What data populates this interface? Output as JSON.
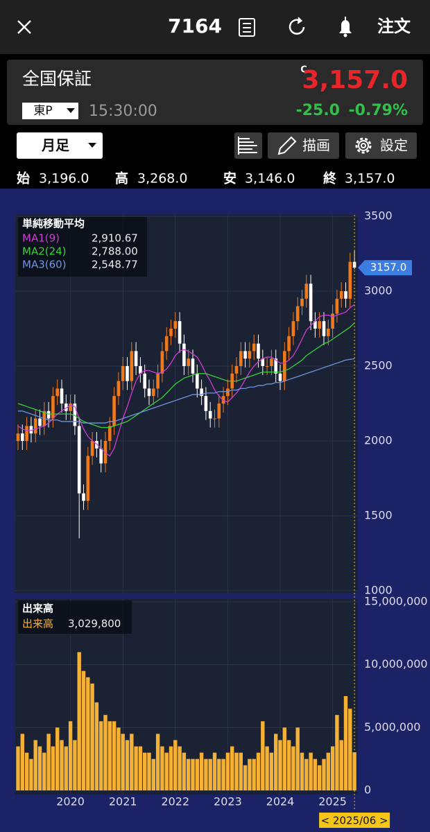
{
  "header": {
    "symbol": "7164",
    "order": "注文"
  },
  "quote": {
    "name": "全国保証",
    "flag": "C",
    "price": "3,157.0",
    "market": "東P",
    "time": "15:30:00",
    "change": "-25.0",
    "change_pct": "-0.79%"
  },
  "toolbar": {
    "period": "月足",
    "draw": "描画",
    "settings": "設定"
  },
  "ohlc": [
    {
      "label": "始",
      "value": "3,196.0"
    },
    {
      "label": "高",
      "value": "3,268.0"
    },
    {
      "label": "安",
      "value": "3,146.0"
    },
    {
      "label": "終",
      "value": "3,157.0"
    }
  ],
  "chart_data": [
    {
      "type": "candlestick",
      "legend_title": "単純移動平均",
      "open": [
        2000,
        2050,
        2000,
        2100,
        2050,
        2150,
        2100,
        2200,
        2150,
        2300,
        2350,
        2250,
        2200,
        2250,
        2100,
        1650,
        1600,
        1900,
        2000,
        1950,
        1850,
        2000,
        2100,
        2300,
        2400,
        2500,
        2400,
        2600,
        2500,
        2450,
        2350,
        2300,
        2350,
        2450,
        2600,
        2700,
        2750,
        2800,
        2650,
        2500,
        2550,
        2450,
        2350,
        2300,
        2200,
        2150,
        2150,
        2250,
        2300,
        2350,
        2450,
        2500,
        2600,
        2550,
        2600,
        2650,
        2550,
        2500,
        2500,
        2550,
        2450,
        2400,
        2600,
        2700,
        2800,
        2900,
        2950,
        3050,
        2800,
        2750,
        2800,
        2700,
        2750,
        2850,
        2950,
        3000,
        2950,
        3196
      ],
      "high": [
        2110,
        2110,
        2160,
        2160,
        2210,
        2210,
        2260,
        2260,
        2360,
        2410,
        2410,
        2310,
        2310,
        2310,
        2160,
        1710,
        1960,
        2060,
        2060,
        2010,
        2060,
        2160,
        2360,
        2460,
        2560,
        2560,
        2660,
        2660,
        2560,
        2510,
        2410,
        2410,
        2510,
        2660,
        2760,
        2810,
        2860,
        2860,
        2710,
        2610,
        2610,
        2510,
        2410,
        2360,
        2260,
        2210,
        2310,
        2360,
        2410,
        2510,
        2560,
        2660,
        2660,
        2660,
        2710,
        2710,
        2610,
        2560,
        2610,
        2610,
        2510,
        2660,
        2760,
        2860,
        2960,
        3010,
        3110,
        3110,
        2860,
        2860,
        2860,
        2810,
        2910,
        3010,
        3060,
        3060,
        3256,
        3268
      ],
      "low": [
        1940,
        1940,
        1940,
        1990,
        1990,
        2040,
        2040,
        2090,
        2090,
        2240,
        2190,
        2140,
        2140,
        2040,
        1350,
        1540,
        1540,
        1840,
        1890,
        1790,
        1790,
        1940,
        2040,
        2240,
        2340,
        2340,
        2340,
        2440,
        2390,
        2290,
        2240,
        2240,
        2290,
        2390,
        2540,
        2640,
        2690,
        2590,
        2440,
        2440,
        2390,
        2290,
        2240,
        2140,
        2090,
        2090,
        2090,
        2190,
        2240,
        2290,
        2390,
        2440,
        2490,
        2490,
        2540,
        2490,
        2440,
        2440,
        2440,
        2390,
        2340,
        2340,
        2540,
        2640,
        2740,
        2840,
        2890,
        2740,
        2690,
        2690,
        2640,
        2640,
        2690,
        2790,
        2890,
        2890,
        2890,
        3146
      ],
      "close": [
        2050,
        2000,
        2100,
        2050,
        2150,
        2100,
        2200,
        2150,
        2300,
        2350,
        2250,
        2200,
        2250,
        2100,
        1650,
        1600,
        1900,
        2000,
        1950,
        1850,
        2000,
        2100,
        2300,
        2400,
        2500,
        2400,
        2600,
        2500,
        2450,
        2350,
        2300,
        2350,
        2450,
        2600,
        2700,
        2750,
        2800,
        2650,
        2500,
        2550,
        2450,
        2350,
        2300,
        2200,
        2150,
        2150,
        2250,
        2300,
        2350,
        2450,
        2500,
        2600,
        2550,
        2600,
        2650,
        2550,
        2500,
        2500,
        2550,
        2450,
        2400,
        2600,
        2700,
        2800,
        2900,
        2950,
        3050,
        2800,
        2750,
        2800,
        2700,
        2750,
        2850,
        2950,
        3000,
        2950,
        3196,
        3157
      ],
      "up_color": "#f07a1a",
      "down_color": "#ffffff",
      "series": [
        {
          "name": "MA1(9)",
          "color": "#d23ad8",
          "values": [
            2100,
            2080,
            2070,
            2070,
            2080,
            2090,
            2100,
            2120,
            2150,
            2180,
            2200,
            2220,
            2240,
            2230,
            2150,
            2080,
            2030,
            2000,
            1980,
            1950,
            1920,
            1900,
            1950,
            2050,
            2150,
            2230,
            2320,
            2400,
            2450,
            2470,
            2470,
            2460,
            2450,
            2460,
            2480,
            2520,
            2570,
            2600,
            2610,
            2600,
            2580,
            2560,
            2510,
            2450,
            2400,
            2340,
            2300,
            2270,
            2260,
            2290,
            2320,
            2360,
            2410,
            2460,
            2500,
            2530,
            2550,
            2560,
            2560,
            2540,
            2520,
            2520,
            2540,
            2570,
            2620,
            2680,
            2740,
            2770,
            2800,
            2830,
            2840,
            2840,
            2830,
            2840,
            2850,
            2860,
            2890,
            2910.67
          ],
          "value_labels": [
            null,
            null,
            null,
            null,
            null,
            null,
            null,
            null,
            null,
            null,
            null,
            null,
            null,
            null,
            null,
            null,
            null,
            null,
            null,
            null,
            null,
            null,
            null,
            null,
            null,
            null,
            null,
            null,
            null,
            null,
            null,
            null,
            null,
            null,
            null,
            null,
            null,
            null,
            null,
            null,
            null,
            null,
            null,
            null,
            null,
            null,
            null,
            null,
            null,
            null,
            null,
            null,
            null,
            null,
            null,
            null,
            null,
            null,
            null,
            null,
            null,
            null,
            null,
            null,
            null,
            null,
            null,
            null,
            null,
            null,
            null,
            null,
            null,
            null,
            null,
            null,
            null,
            "2,910.67"
          ]
        },
        {
          "name": "MA2(24)",
          "color": "#3ccf3c",
          "values": [
            2250,
            2240,
            2230,
            2220,
            2210,
            2200,
            2190,
            2180,
            2180,
            2180,
            2180,
            2180,
            2180,
            2170,
            2150,
            2130,
            2120,
            2110,
            2100,
            2090,
            2090,
            2090,
            2100,
            2110,
            2120,
            2130,
            2150,
            2170,
            2190,
            2210,
            2230,
            2250,
            2270,
            2290,
            2320,
            2350,
            2380,
            2400,
            2420,
            2430,
            2440,
            2450,
            2450,
            2450,
            2440,
            2430,
            2420,
            2410,
            2400,
            2400,
            2400,
            2410,
            2420,
            2430,
            2440,
            2450,
            2460,
            2460,
            2460,
            2460,
            2460,
            2470,
            2480,
            2500,
            2520,
            2540,
            2570,
            2590,
            2610,
            2630,
            2650,
            2660,
            2680,
            2700,
            2720,
            2740,
            2760,
            2788
          ],
          "value_labels": [
            null,
            null,
            null,
            null,
            null,
            null,
            null,
            null,
            null,
            null,
            null,
            null,
            null,
            null,
            null,
            null,
            null,
            null,
            null,
            null,
            null,
            null,
            null,
            null,
            null,
            null,
            null,
            null,
            null,
            null,
            null,
            null,
            null,
            null,
            null,
            null,
            null,
            null,
            null,
            null,
            null,
            null,
            null,
            null,
            null,
            null,
            null,
            null,
            null,
            null,
            null,
            null,
            null,
            null,
            null,
            null,
            null,
            null,
            null,
            null,
            null,
            null,
            null,
            null,
            null,
            null,
            null,
            null,
            null,
            null,
            null,
            null,
            null,
            null,
            null,
            null,
            null,
            "2,788.00"
          ]
        },
        {
          "name": "MA3(60)",
          "color": "#6f95e0",
          "values": [
            2200,
            2200,
            2190,
            2180,
            2170,
            2160,
            2150,
            2140,
            2140,
            2140,
            2130,
            2130,
            2130,
            2130,
            2130,
            2120,
            2120,
            2120,
            2120,
            2120,
            2120,
            2130,
            2130,
            2140,
            2150,
            2160,
            2170,
            2180,
            2190,
            2200,
            2210,
            2220,
            2230,
            2240,
            2250,
            2260,
            2270,
            2280,
            2290,
            2300,
            2310,
            2310,
            2310,
            2320,
            2320,
            2320,
            2330,
            2330,
            2330,
            2340,
            2340,
            2350,
            2350,
            2360,
            2360,
            2370,
            2370,
            2380,
            2380,
            2390,
            2390,
            2400,
            2410,
            2420,
            2430,
            2440,
            2450,
            2460,
            2470,
            2480,
            2490,
            2500,
            2510,
            2520,
            2530,
            2540,
            2545,
            2548.77
          ],
          "value_labels": [
            null,
            null,
            null,
            null,
            null,
            null,
            null,
            null,
            null,
            null,
            null,
            null,
            null,
            null,
            null,
            null,
            null,
            null,
            null,
            null,
            null,
            null,
            null,
            null,
            null,
            null,
            null,
            null,
            null,
            null,
            null,
            null,
            null,
            null,
            null,
            null,
            null,
            null,
            null,
            null,
            null,
            null,
            null,
            null,
            null,
            null,
            null,
            null,
            null,
            null,
            null,
            null,
            null,
            null,
            null,
            null,
            null,
            null,
            null,
            null,
            null,
            null,
            null,
            null,
            null,
            null,
            null,
            null,
            null,
            null,
            null,
            null,
            null,
            null,
            null,
            null,
            null,
            "2,548.77"
          ]
        }
      ],
      "ylim": [
        1000,
        3500
      ],
      "yticks": [
        1000,
        1500,
        2000,
        2500,
        3000,
        3500
      ],
      "grid": true,
      "last_price_label": "3157.0"
    },
    {
      "type": "bar",
      "title": "出来高",
      "categories": [
        null,
        null,
        null,
        null,
        null,
        null,
        null,
        null,
        null,
        null,
        null,
        null,
        "2020",
        null,
        null,
        null,
        null,
        null,
        null,
        null,
        null,
        null,
        null,
        null,
        "2021",
        null,
        null,
        null,
        null,
        null,
        null,
        null,
        null,
        null,
        null,
        null,
        "2022",
        null,
        null,
        null,
        null,
        null,
        null,
        null,
        null,
        null,
        null,
        null,
        "2023",
        null,
        null,
        null,
        null,
        null,
        null,
        null,
        null,
        null,
        null,
        null,
        "2024",
        null,
        null,
        null,
        null,
        null,
        null,
        null,
        null,
        null,
        null,
        null,
        "2025",
        null,
        null,
        null,
        null,
        null
      ],
      "series": [
        {
          "name": "出来高",
          "color": "#f5b133",
          "values": [
            3500000,
            4500000,
            3000000,
            2500000,
            4000000,
            3500000,
            3000000,
            4500000,
            3500000,
            5000000,
            4000000,
            3500000,
            5500000,
            4000000,
            11000000,
            9500000,
            9000000,
            8500000,
            7000000,
            5500000,
            6000000,
            5500000,
            5500000,
            5000000,
            4500000,
            4000000,
            4500000,
            3500000,
            3500000,
            3000000,
            3000000,
            2500000,
            4500000,
            3500000,
            3000000,
            3500000,
            4000000,
            3500000,
            3000000,
            2500000,
            2500000,
            2500000,
            3000000,
            2500000,
            2500000,
            3000000,
            2500000,
            2500000,
            3000000,
            3500000,
            3000000,
            3000000,
            2000000,
            2500000,
            2500000,
            3000000,
            5500000,
            3500000,
            3000000,
            4500000,
            4000000,
            5000000,
            4000000,
            3500000,
            5000000,
            3000000,
            2500000,
            3000000,
            2500000,
            2000000,
            2500000,
            3000000,
            3500000,
            6000000,
            4000000,
            7500000,
            6500000,
            3029800
          ],
          "value_labels": [
            null,
            null,
            null,
            null,
            null,
            null,
            null,
            null,
            null,
            null,
            null,
            null,
            null,
            null,
            null,
            null,
            null,
            null,
            null,
            null,
            null,
            null,
            null,
            null,
            null,
            null,
            null,
            null,
            null,
            null,
            null,
            null,
            null,
            null,
            null,
            null,
            null,
            null,
            null,
            null,
            null,
            null,
            null,
            null,
            null,
            null,
            null,
            null,
            null,
            null,
            null,
            null,
            null,
            null,
            null,
            null,
            null,
            null,
            null,
            null,
            null,
            null,
            null,
            null,
            null,
            null,
            null,
            null,
            null,
            null,
            null,
            null,
            null,
            null,
            null,
            null,
            null,
            "3,029,800"
          ]
        }
      ],
      "ylim": [
        0,
        15000000
      ],
      "yticks": [
        0,
        {
          "value": 5000000,
          "label": "5,000,000"
        },
        {
          "value": 10000000,
          "label": "10,000,000"
        },
        {
          "value": 15000000,
          "label": "15,000,000"
        }
      ],
      "grid": true,
      "cursor_label": "< 2025/06 >"
    }
  ]
}
